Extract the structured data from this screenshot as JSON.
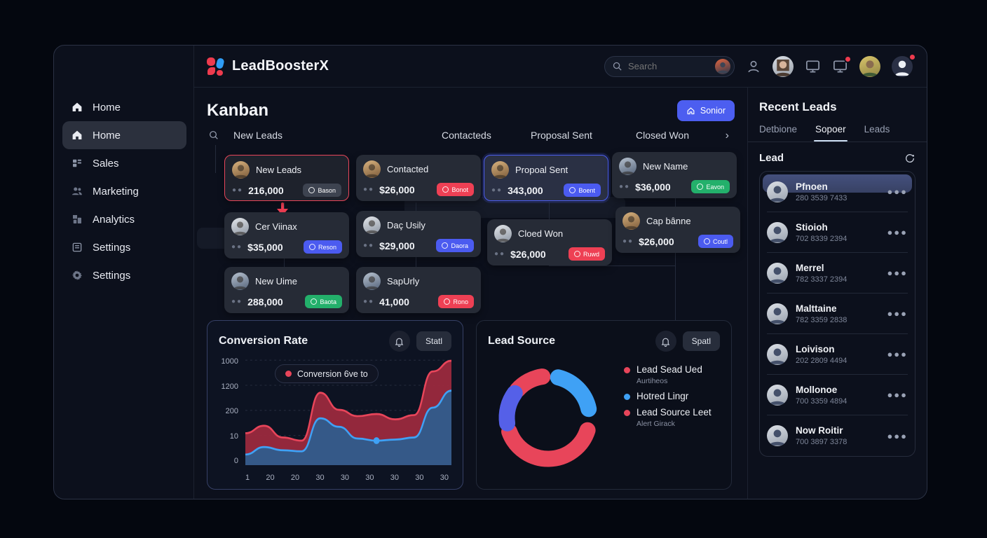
{
  "brand": {
    "name": "LeadBoosterX",
    "logo_icon": "logo-mark-red-blue"
  },
  "header": {
    "search_placeholder": "Search",
    "icons": [
      "user-icon",
      "avatar",
      "monitor-icon",
      "monitor-notification-icon",
      "avatar",
      "account-notification-icon"
    ]
  },
  "sidebar": {
    "items": [
      {
        "label": "Home",
        "icon": "home-icon",
        "active": false
      },
      {
        "label": "Home",
        "icon": "home-icon",
        "active": true
      },
      {
        "label": "Sales",
        "icon": "grid-icon",
        "active": false
      },
      {
        "label": "Marketing",
        "icon": "users-icon",
        "active": false
      },
      {
        "label": "Analytics",
        "icon": "chart-icon",
        "active": false
      },
      {
        "label": "Settings",
        "icon": "document-icon",
        "active": false
      },
      {
        "label": "Settings",
        "icon": "gear-icon",
        "active": false
      }
    ]
  },
  "kanban": {
    "title": "Kanban",
    "action_button_label": "Sonior",
    "column_headers": [
      "New Leads",
      "Contacteds",
      "Proposal Sent",
      "Closed Won"
    ],
    "cards": [
      {
        "id": "c1",
        "name": "New Leads",
        "amount": "216,000",
        "badge": "Bason",
        "badge_color": "gray",
        "highlight": "red"
      },
      {
        "id": "c2",
        "name": "Cer Viinax",
        "amount": "$35,000",
        "badge": "Reson",
        "badge_color": "blue"
      },
      {
        "id": "c3",
        "name": "New Uime",
        "amount": "288,000",
        "badge": "Baota",
        "badge_color": "green"
      },
      {
        "id": "c4",
        "name": "Contacted",
        "amount": "$26,000",
        "badge": "Bonot",
        "badge_color": "red"
      },
      {
        "id": "c5",
        "name": "Daç Usily",
        "amount": "$29,000",
        "badge": "Daora",
        "badge_color": "blue"
      },
      {
        "id": "c6",
        "name": "SapUrly",
        "amount": "41,000",
        "badge": "Rono",
        "badge_color": "red"
      },
      {
        "id": "c7",
        "name": "Propoal Sent",
        "amount": "343,000",
        "badge": "Boent",
        "badge_color": "blue",
        "highlight": "blue"
      },
      {
        "id": "c8",
        "name": "Cloed Won",
        "amount": "$26,000",
        "badge": "Ruwd",
        "badge_color": "red"
      },
      {
        "id": "c9",
        "name": "New Name",
        "amount": "$36,000",
        "badge": "Eavon",
        "badge_color": "green"
      },
      {
        "id": "c10",
        "name": "Cap bânne",
        "amount": "$26,000",
        "badge": "Coutl",
        "badge_color": "blue"
      }
    ]
  },
  "chart_data": [
    {
      "id": "conversion",
      "type": "area",
      "title": "Conversion Rate",
      "button_label": "Statl",
      "legend": [
        {
          "color": "#e8455a",
          "label": "Conversion 6ve to"
        }
      ],
      "y_ticks_top_to_bottom": [
        "1000",
        "1200",
        "200",
        "10",
        "0"
      ],
      "x_ticks": [
        "1",
        "20",
        "20",
        "30",
        "30",
        "30",
        "30",
        "30",
        "30"
      ],
      "grid": true,
      "series": [
        {
          "name": "Conversion 6ve to",
          "color": "#e8455a",
          "fill": "rgba(158,42,63,0.92)",
          "values_pct": [
            30,
            37,
            26,
            23,
            68,
            52,
            46,
            48,
            43,
            47,
            88,
            98
          ]
        },
        {
          "name": "secondary",
          "color": "#3fa1f5",
          "fill": "rgba(44,93,143,0.92)",
          "values_pct": [
            10,
            17,
            14,
            13,
            44,
            36,
            25,
            23,
            24,
            26,
            54,
            70
          ]
        }
      ],
      "marker": {
        "series": 1,
        "index": 7,
        "color": "#3fa1f5"
      }
    },
    {
      "id": "lead-source",
      "type": "donut",
      "title": "Lead Source",
      "button_label": "Spatl",
      "segments": [
        {
          "color": "#e8455a",
          "from_deg": 312,
          "to_deg": 352
        },
        {
          "color": "#3fa1f5",
          "from_deg": 14,
          "to_deg": 78
        },
        {
          "color": "#e8455a",
          "from_deg": 108,
          "to_deg": 250
        },
        {
          "color": "#5560e8",
          "from_deg": 262,
          "to_deg": 306
        }
      ],
      "legend": [
        {
          "color": "#e8455a",
          "label": "Lead Sead Ued",
          "sub": "Aurtiheos"
        },
        {
          "color": "#3fa1f5",
          "label": "Hotred Lingr",
          "sub": ""
        },
        {
          "color": "#e8455a",
          "label": "Lead Source Leet",
          "sub": "Alert Girack"
        }
      ]
    }
  ],
  "recent_leads": {
    "title": "Recent Leads",
    "tabs": [
      {
        "label": "Detbione",
        "active": false
      },
      {
        "label": "Sopoer",
        "active": true
      },
      {
        "label": "Leads",
        "active": false
      }
    ],
    "section_title": "Lead",
    "refresh_icon": "refresh-icon",
    "items": [
      {
        "name": "Pfnoen",
        "phone": "280 3539 7433",
        "highlighted": true
      },
      {
        "name": "Stioioh",
        "phone": "702 8339 2394"
      },
      {
        "name": "Merrel",
        "phone": "782 3337 2394"
      },
      {
        "name": "Malttaine",
        "phone": "782 3359 2838"
      },
      {
        "name": "Loivison",
        "phone": "202 2809 4494"
      },
      {
        "name": "Mollonoe",
        "phone": "700 3359 4894"
      },
      {
        "name": "Now Roitir",
        "phone": "700 3897 3378"
      }
    ]
  },
  "colors": {
    "accent_blue": "#4c5ef0",
    "accent_red": "#e8455a",
    "accent_green": "#23b06b",
    "accent_lightblue": "#3fa1f5",
    "accent_indigo": "#5560e8",
    "badge_gray": "#3d4350"
  }
}
